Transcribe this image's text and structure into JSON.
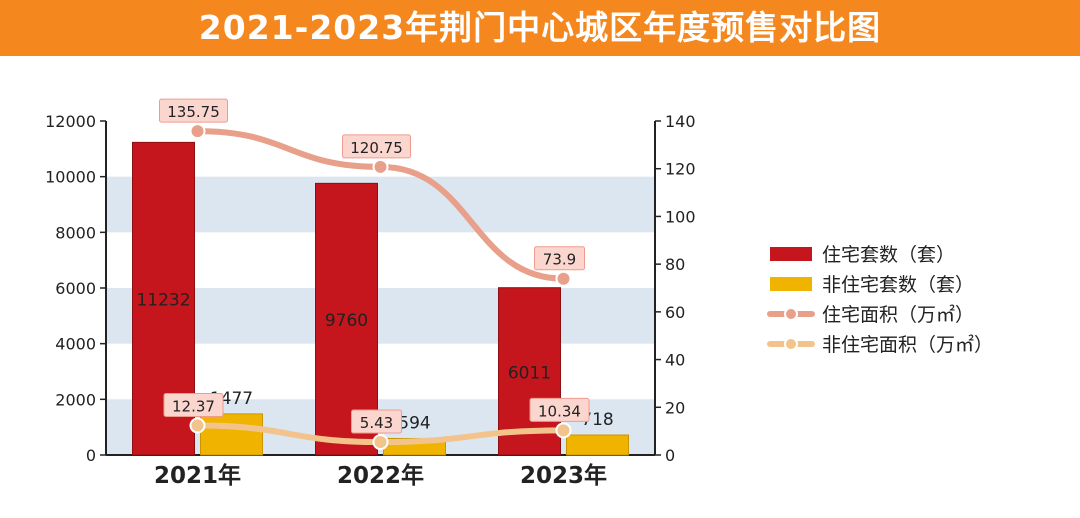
{
  "title": "2021-2023年荆门中心城区年度预售对比图",
  "chart_data": {
    "type": "bar",
    "title": "2021-2023年荆门中心城区年度预售对比图",
    "categories": [
      "2021年",
      "2022年",
      "2023年"
    ],
    "series": [
      {
        "name": "住宅套数（套）",
        "type": "bar",
        "axis": "left",
        "color": "#c4161c",
        "values": [
          11232,
          9760,
          6011
        ],
        "labels": [
          "11232",
          "9760",
          "6011"
        ]
      },
      {
        "name": "非住宅套数（套）",
        "type": "bar",
        "axis": "left",
        "color": "#f0b400",
        "values": [
          1477,
          594,
          718
        ],
        "labels": [
          "1477",
          "594",
          "718"
        ]
      },
      {
        "name": "住宅面积（万㎡）",
        "type": "line",
        "axis": "right",
        "color": "#e8a08a",
        "values": [
          135.75,
          120.75,
          73.9
        ],
        "labels": [
          "135.75",
          "120.75",
          "73.9"
        ]
      },
      {
        "name": "非住宅面积（万㎡）",
        "type": "line",
        "axis": "right",
        "color": "#f2c48c",
        "values": [
          12.37,
          5.43,
          10.34
        ],
        "labels": [
          "12.37",
          "5.43",
          "10.34"
        ]
      }
    ],
    "y_left": {
      "min": 0,
      "max": 12000,
      "ticks": [
        0,
        2000,
        4000,
        6000,
        8000,
        10000,
        12000
      ]
    },
    "y_right": {
      "min": 0,
      "max": 140,
      "ticks": [
        0,
        20,
        40,
        60,
        80,
        100,
        120,
        140
      ]
    },
    "grid": "alternating horizontal bands",
    "legend": "right"
  }
}
